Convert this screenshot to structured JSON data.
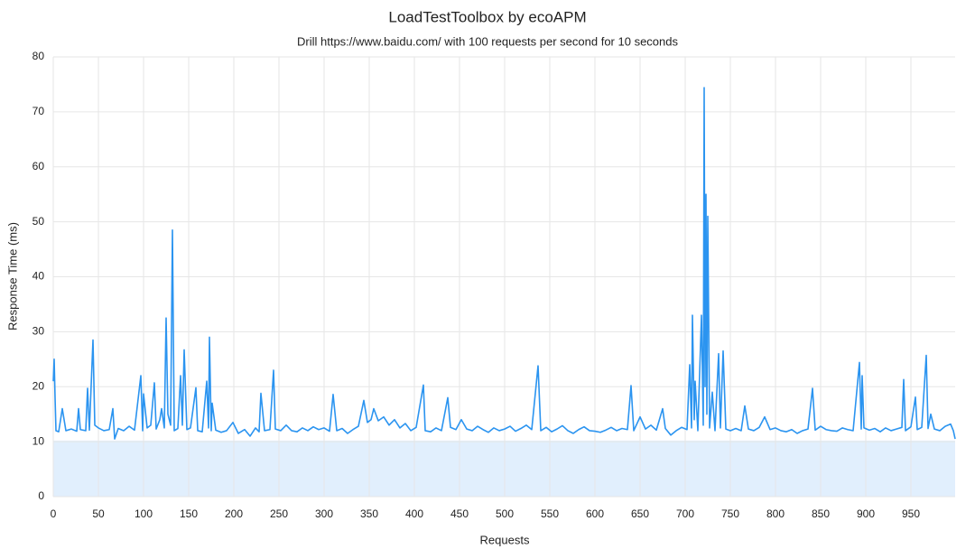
{
  "chart_data": {
    "type": "line",
    "title": "LoadTestToolbox by ecoAPM",
    "subtitle": "Drill https://www.baidu.com/ with 100 requests per second for 10 seconds",
    "x_label": "Requests",
    "y_label": "Response Time (ms)",
    "xlim": [
      0,
      999
    ],
    "ylim": [
      0,
      80
    ],
    "xticks": [
      0,
      50,
      100,
      150,
      200,
      250,
      300,
      350,
      400,
      450,
      500,
      550,
      600,
      650,
      700,
      750,
      800,
      850,
      900,
      950
    ],
    "yticks": [
      0,
      10,
      20,
      30,
      40,
      50,
      60,
      70,
      80
    ],
    "grid": true,
    "area": {
      "color": "#e1effd",
      "x": [
        0,
        999
      ],
      "values": [
        10.2,
        10.2
      ]
    },
    "series": [
      {
        "color": "#2b94f0",
        "x": [
          0,
          1,
          2,
          3,
          6,
          10,
          14,
          20,
          26,
          28,
          30,
          36,
          38,
          40,
          44,
          46,
          50,
          56,
          62,
          66,
          68,
          72,
          78,
          84,
          90,
          97,
          99,
          100,
          104,
          108,
          112,
          114,
          118,
          120,
          123,
          125,
          127,
          130,
          132,
          134,
          138,
          141,
          143,
          145,
          148,
          152,
          158,
          160,
          165,
          170,
          172,
          173,
          175,
          176,
          180,
          186,
          192,
          199,
          205,
          212,
          218,
          224,
          228,
          230,
          234,
          240,
          244,
          246,
          252,
          258,
          264,
          270,
          276,
          282,
          288,
          294,
          300,
          306,
          310,
          314,
          320,
          326,
          332,
          338,
          344,
          348,
          352,
          355,
          360,
          366,
          372,
          378,
          384,
          390,
          396,
          402,
          410,
          412,
          418,
          424,
          430,
          437,
          440,
          446,
          452,
          458,
          464,
          470,
          476,
          482,
          488,
          494,
          500,
          506,
          512,
          518,
          524,
          530,
          537,
          540,
          546,
          552,
          558,
          564,
          570,
          576,
          582,
          588,
          594,
          600,
          606,
          612,
          618,
          624,
          630,
          636,
          640,
          643,
          650,
          656,
          662,
          668,
          675,
          678,
          684,
          690,
          696,
          702,
          705,
          707,
          708,
          710,
          711,
          714,
          718,
          720,
          721,
          722,
          723,
          724,
          725,
          727,
          730,
          733,
          737,
          739,
          742,
          745,
          750,
          756,
          762,
          766,
          770,
          776,
          782,
          788,
          794,
          800,
          806,
          812,
          818,
          824,
          830,
          836,
          841,
          844,
          850,
          856,
          862,
          868,
          874,
          880,
          886,
          893,
          895,
          896,
          898,
          904,
          910,
          916,
          922,
          928,
          934,
          940,
          942,
          944,
          950,
          955,
          957,
          962,
          967,
          969,
          972,
          976,
          982,
          988,
          994,
          997,
          999
        ],
        "values": [
          21,
          25,
          18,
          12,
          11.8,
          16,
          12,
          12.3,
          11.9,
          16,
          12.2,
          12,
          19.7,
          12.1,
          28.5,
          13,
          12.5,
          12,
          12.2,
          16,
          10.5,
          12.4,
          12,
          12.8,
          12.1,
          22,
          12,
          18.7,
          12.5,
          13,
          20.7,
          12.3,
          14,
          16,
          12.5,
          32.5,
          15,
          13,
          48.5,
          12,
          12.4,
          22,
          13,
          26.7,
          12.2,
          12.5,
          19.8,
          12,
          11.8,
          21,
          12.5,
          29,
          12,
          17,
          12.1,
          11.7,
          12,
          13.5,
          11.5,
          12.2,
          11,
          12.5,
          11.8,
          18.8,
          12,
          12.2,
          23,
          12.3,
          12,
          13,
          12,
          11.8,
          12.5,
          12,
          12.7,
          12.2,
          12.5,
          11.9,
          18.6,
          12,
          12.4,
          11.5,
          12.2,
          12.8,
          17.5,
          13.5,
          14,
          16,
          13.8,
          14.5,
          13,
          14,
          12.5,
          13.3,
          12,
          12.6,
          20.3,
          12,
          11.8,
          12.5,
          12,
          18,
          12.6,
          12.2,
          14,
          12.3,
          12,
          12.8,
          12.2,
          11.7,
          12.5,
          12,
          12.3,
          12.8,
          11.9,
          12.4,
          13,
          12.2,
          23.8,
          12,
          12.6,
          11.8,
          12.3,
          12.9,
          12,
          11.5,
          12.2,
          12.7,
          12,
          11.9,
          11.7,
          12.1,
          12.6,
          12,
          12.4,
          12.2,
          20.2,
          12,
          14.5,
          12.3,
          13,
          12.1,
          16,
          12.4,
          11.2,
          12,
          12.6,
          12.2,
          24,
          12.5,
          33,
          14,
          21,
          12,
          33,
          13,
          74.4,
          20,
          55,
          15,
          51,
          12.5,
          19,
          12,
          26,
          12.5,
          26.5,
          12.3,
          12,
          12.4,
          12,
          16.5,
          12.3,
          12,
          12.6,
          14.5,
          12.2,
          12.5,
          12,
          11.8,
          12.2,
          11.5,
          12,
          12.3,
          19.7,
          12.1,
          12.8,
          12.2,
          12,
          11.9,
          12.5,
          12.2,
          12,
          24.4,
          12.3,
          22,
          12.5,
          12.1,
          12.4,
          11.8,
          12.5,
          12,
          12.3,
          12.6,
          21.3,
          12,
          12.7,
          18.1,
          12.2,
          12.6,
          25.7,
          12.4,
          15,
          12.3,
          12,
          12.8,
          13.2,
          12,
          10.5
        ]
      }
    ]
  }
}
